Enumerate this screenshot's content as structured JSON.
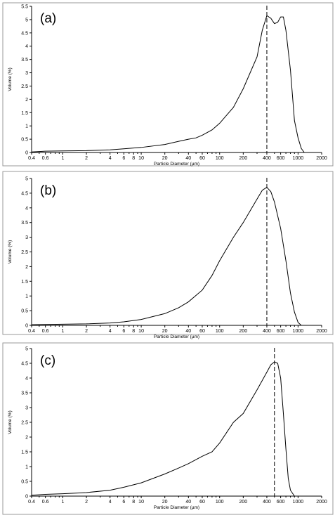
{
  "chart_data": [
    {
      "type": "line",
      "panel_label": "(a)",
      "xlabel": "Particle Diameter (µm)",
      "ylabel": "Volume (%)",
      "x_scale": "log",
      "xlim": [
        0.4,
        2000
      ],
      "ylim": [
        0,
        5.5
      ],
      "x_ticks": [
        0.4,
        0.6,
        1,
        2,
        4,
        6,
        8,
        10,
        20,
        40,
        60,
        100,
        200,
        400,
        600,
        1000,
        2000
      ],
      "y_ticks": [
        0,
        0.5,
        1,
        1.5,
        2,
        2.5,
        3,
        3.5,
        4,
        4.5,
        5,
        5.5
      ],
      "y_tick_labels": [
        "0",
        "0.5",
        "1",
        "1.5",
        "2",
        "2.5",
        "3",
        "3.5",
        "4",
        "4.5",
        "5",
        "5.5"
      ],
      "marker_x": 400,
      "series": [
        {
          "x": [
            0.4,
            0.6,
            1,
            2,
            4,
            6,
            10,
            20,
            30,
            40,
            50,
            60,
            80,
            100,
            150,
            200,
            300,
            350,
            400,
            450,
            500,
            550,
            600,
            650,
            700,
            800,
            900,
            1000,
            1100,
            1200
          ],
          "y": [
            0.02,
            0.05,
            0.06,
            0.07,
            0.1,
            0.14,
            0.19,
            0.3,
            0.42,
            0.5,
            0.55,
            0.65,
            0.85,
            1.1,
            1.7,
            2.4,
            3.6,
            4.6,
            5.15,
            5.05,
            4.85,
            4.9,
            5.1,
            5.1,
            4.6,
            3.1,
            1.2,
            0.55,
            0.15,
            0.0
          ]
        }
      ]
    },
    {
      "type": "line",
      "panel_label": "(b)",
      "xlabel": "Particle Diameter (µm)",
      "ylabel": "Volume (%)",
      "x_scale": "log",
      "xlim": [
        0.4,
        2000
      ],
      "ylim": [
        0,
        5
      ],
      "x_ticks": [
        0.4,
        0.6,
        1,
        2,
        4,
        6,
        8,
        10,
        20,
        40,
        60,
        100,
        200,
        400,
        600,
        1000,
        2000
      ],
      "y_ticks": [
        0,
        0.5,
        1,
        1.5,
        2,
        2.5,
        3,
        3.5,
        4,
        4.5,
        5
      ],
      "y_tick_labels": [
        "0",
        "0.5",
        "1",
        "1.5",
        "2",
        "2.5",
        "3",
        "3.5",
        "4",
        "4.5",
        "5"
      ],
      "marker_x": 400,
      "series": [
        {
          "x": [
            0.4,
            0.6,
            1,
            2,
            4,
            6,
            10,
            20,
            30,
            40,
            60,
            80,
            100,
            150,
            200,
            300,
            350,
            400,
            450,
            500,
            600,
            700,
            800,
            900,
            1000,
            1100
          ],
          "y": [
            0.02,
            0.03,
            0.04,
            0.05,
            0.08,
            0.12,
            0.2,
            0.4,
            0.6,
            0.8,
            1.2,
            1.7,
            2.2,
            3.0,
            3.5,
            4.3,
            4.6,
            4.7,
            4.55,
            4.2,
            3.3,
            2.2,
            1.1,
            0.45,
            0.1,
            0.0
          ]
        }
      ]
    },
    {
      "type": "line",
      "panel_label": "(c)",
      "xlabel": "Particle Diameter (µm)",
      "ylabel": "Volume (%)",
      "x_scale": "log",
      "xlim": [
        0.4,
        2000
      ],
      "ylim": [
        0,
        5
      ],
      "x_ticks": [
        0.4,
        0.6,
        1,
        2,
        4,
        6,
        8,
        10,
        20,
        40,
        60,
        100,
        200,
        400,
        600,
        1000,
        2000
      ],
      "y_ticks": [
        0,
        0.5,
        1,
        1.5,
        2,
        2.5,
        3,
        3.5,
        4,
        4.5,
        5
      ],
      "y_tick_labels": [
        "0",
        "0.5",
        "1",
        "1.5",
        "2",
        "2.5",
        "3",
        "3.5",
        "4",
        "4.5",
        "5"
      ],
      "marker_x": 500,
      "series": [
        {
          "x": [
            0.4,
            0.6,
            1,
            2,
            4,
            6,
            10,
            20,
            30,
            40,
            60,
            80,
            100,
            150,
            200,
            300,
            400,
            450,
            500,
            550,
            600,
            650,
            700,
            750,
            800,
            900
          ],
          "y": [
            0.03,
            0.06,
            0.08,
            0.12,
            0.2,
            0.3,
            0.45,
            0.75,
            0.95,
            1.1,
            1.35,
            1.5,
            1.8,
            2.5,
            2.8,
            3.6,
            4.2,
            4.45,
            4.55,
            4.5,
            4.0,
            2.8,
            1.6,
            0.6,
            0.2,
            0.0
          ]
        }
      ]
    }
  ]
}
